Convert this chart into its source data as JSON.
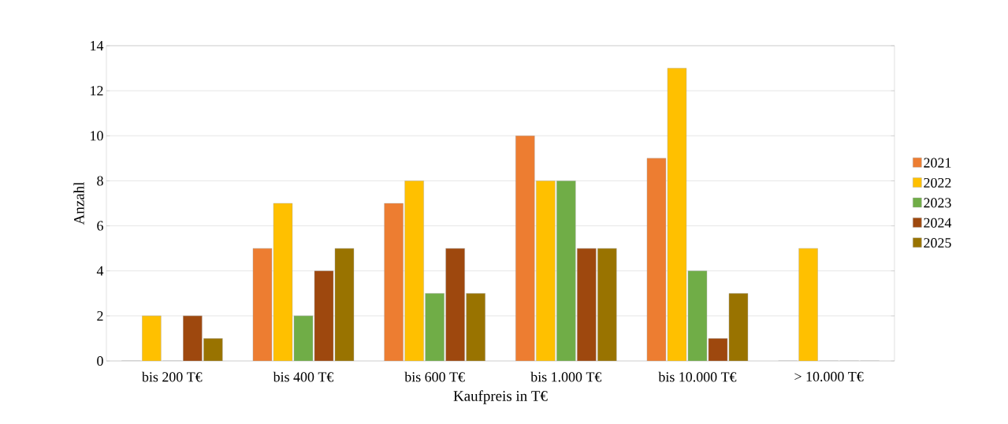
{
  "chart_data": {
    "type": "bar",
    "xlabel": "Kaufpreis in T€",
    "ylabel": "Anzahl",
    "categories": [
      "bis 200 T€",
      "bis 400 T€",
      "bis 600 T€",
      "bis 1.000 T€",
      "bis 10.000 T€",
      "> 10.000 T€"
    ],
    "series": [
      {
        "name": "2021",
        "color": "#ed7d31",
        "values": [
          0,
          5,
          7,
          10,
          9,
          0
        ]
      },
      {
        "name": "2022",
        "color": "#ffc000",
        "values": [
          2,
          7,
          8,
          8,
          13,
          5
        ]
      },
      {
        "name": "2023",
        "color": "#70ad47",
        "values": [
          0,
          2,
          3,
          8,
          4,
          0
        ]
      },
      {
        "name": "2024",
        "color": "#9e480e",
        "values": [
          2,
          4,
          5,
          5,
          1,
          0
        ]
      },
      {
        "name": "2025",
        "color": "#997300",
        "values": [
          1,
          5,
          3,
          5,
          3,
          0
        ]
      }
    ],
    "ylim": [
      0,
      14
    ],
    "yticks": [
      0,
      2,
      4,
      6,
      8,
      10,
      12,
      14
    ],
    "grid": "y",
    "legend": "right"
  }
}
